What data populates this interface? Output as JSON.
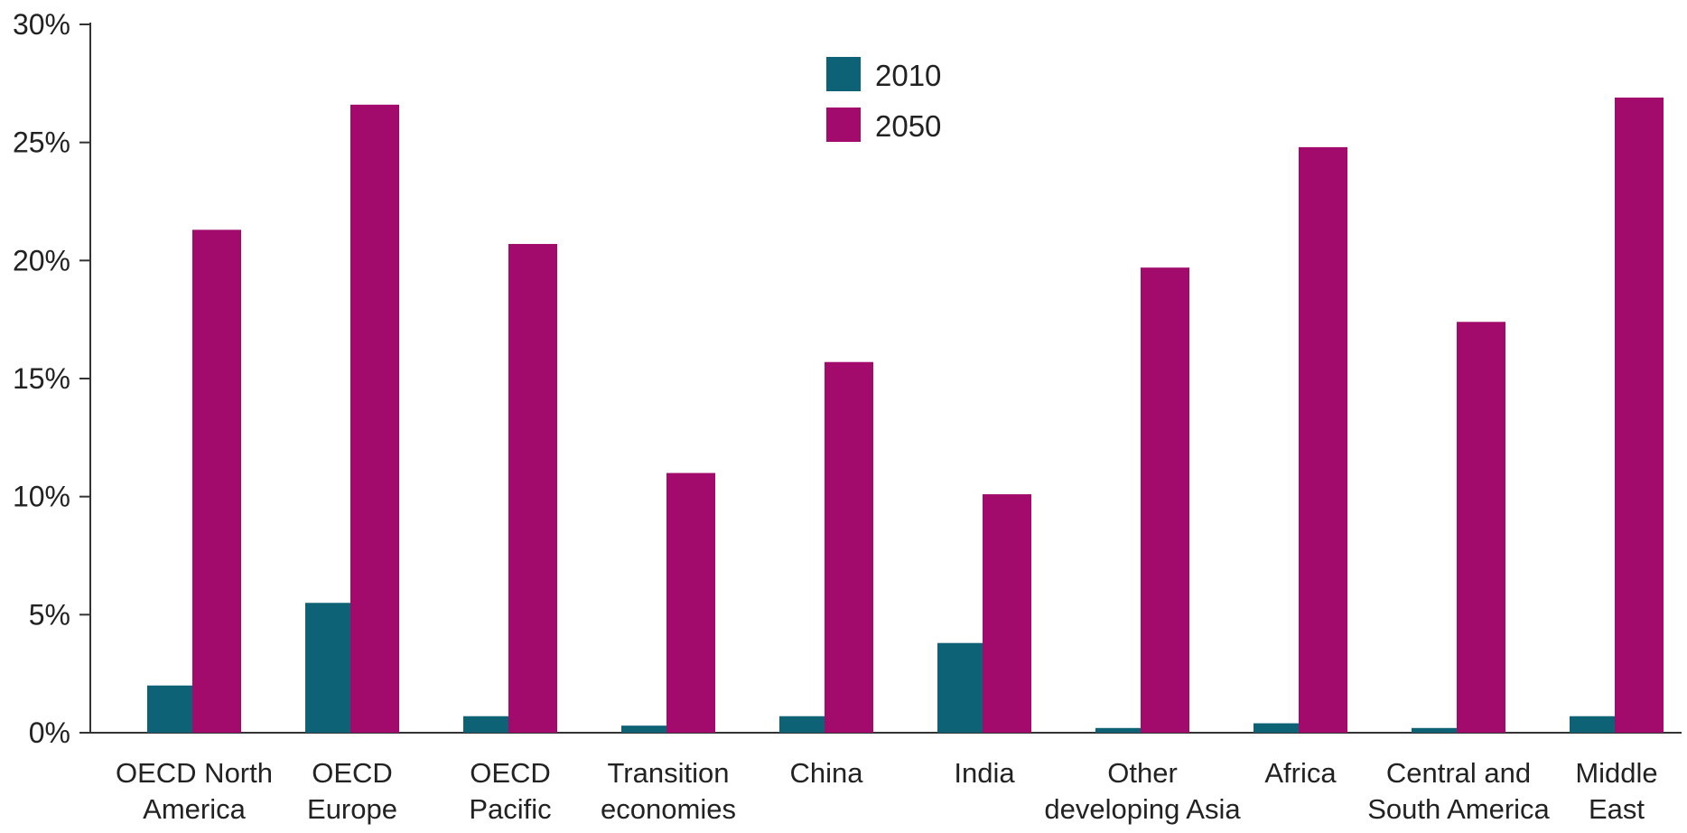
{
  "chart_data": {
    "type": "bar",
    "y_tick_labels": [
      "0%",
      "5%",
      "10%",
      "15%",
      "20%",
      "25%",
      "30%"
    ],
    "y_ticks": [
      0,
      5,
      10,
      15,
      20,
      25,
      30
    ],
    "ylim": [
      0,
      30
    ],
    "y_unit": "%",
    "grid": false,
    "legend_position": "top-center",
    "categories": [
      [
        "OECD North",
        "America"
      ],
      [
        "OECD",
        "Europe"
      ],
      [
        "OECD",
        "Pacific"
      ],
      [
        "Transition",
        "economies"
      ],
      [
        "China"
      ],
      [
        "India"
      ],
      [
        "Other",
        "developing Asia"
      ],
      [
        "Africa"
      ],
      [
        "Central and",
        "South America"
      ],
      [
        "Middle",
        "East"
      ]
    ],
    "series": [
      {
        "name": "2010",
        "color": "#0e6276",
        "values": [
          2.0,
          5.5,
          0.7,
          0.3,
          0.7,
          3.8,
          0.2,
          0.4,
          0.2,
          0.7
        ]
      },
      {
        "name": "2050",
        "color": "#a20a6b",
        "values": [
          21.3,
          26.6,
          20.7,
          11.0,
          15.7,
          10.1,
          19.7,
          24.8,
          17.4,
          26.9
        ]
      }
    ]
  }
}
